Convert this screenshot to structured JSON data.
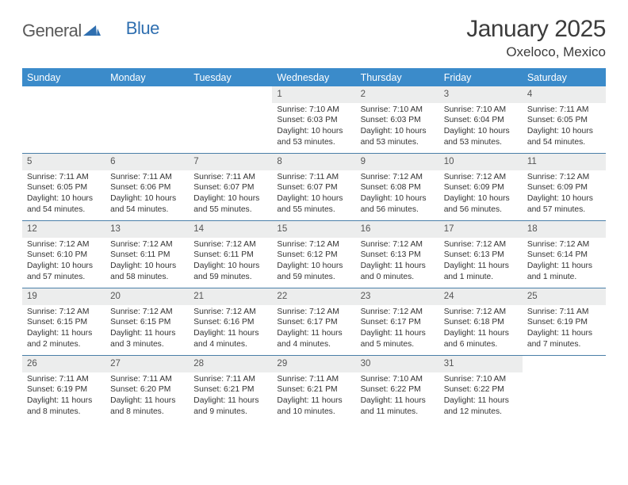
{
  "brand": {
    "part1": "General",
    "part2": "Blue",
    "color1": "#5a5a5a",
    "color2": "#2f6fb0"
  },
  "title": "January 2025",
  "location": "Oxeloco, Mexico",
  "colors": {
    "header_bg": "#3b8bca",
    "header_text": "#ffffff",
    "daynum_bg": "#eceded",
    "row_border": "#4a7fa8",
    "text": "#333333"
  },
  "day_headers": [
    "Sunday",
    "Monday",
    "Tuesday",
    "Wednesday",
    "Thursday",
    "Friday",
    "Saturday"
  ],
  "weeks": [
    {
      "nums": [
        "",
        "",
        "",
        "1",
        "2",
        "3",
        "4"
      ],
      "cells": [
        null,
        null,
        null,
        {
          "sunrise": "7:10 AM",
          "sunset": "6:03 PM",
          "daylight": "10 hours and 53 minutes."
        },
        {
          "sunrise": "7:10 AM",
          "sunset": "6:03 PM",
          "daylight": "10 hours and 53 minutes."
        },
        {
          "sunrise": "7:10 AM",
          "sunset": "6:04 PM",
          "daylight": "10 hours and 53 minutes."
        },
        {
          "sunrise": "7:11 AM",
          "sunset": "6:05 PM",
          "daylight": "10 hours and 54 minutes."
        }
      ]
    },
    {
      "nums": [
        "5",
        "6",
        "7",
        "8",
        "9",
        "10",
        "11"
      ],
      "cells": [
        {
          "sunrise": "7:11 AM",
          "sunset": "6:05 PM",
          "daylight": "10 hours and 54 minutes."
        },
        {
          "sunrise": "7:11 AM",
          "sunset": "6:06 PM",
          "daylight": "10 hours and 54 minutes."
        },
        {
          "sunrise": "7:11 AM",
          "sunset": "6:07 PM",
          "daylight": "10 hours and 55 minutes."
        },
        {
          "sunrise": "7:11 AM",
          "sunset": "6:07 PM",
          "daylight": "10 hours and 55 minutes."
        },
        {
          "sunrise": "7:12 AM",
          "sunset": "6:08 PM",
          "daylight": "10 hours and 56 minutes."
        },
        {
          "sunrise": "7:12 AM",
          "sunset": "6:09 PM",
          "daylight": "10 hours and 56 minutes."
        },
        {
          "sunrise": "7:12 AM",
          "sunset": "6:09 PM",
          "daylight": "10 hours and 57 minutes."
        }
      ]
    },
    {
      "nums": [
        "12",
        "13",
        "14",
        "15",
        "16",
        "17",
        "18"
      ],
      "cells": [
        {
          "sunrise": "7:12 AM",
          "sunset": "6:10 PM",
          "daylight": "10 hours and 57 minutes."
        },
        {
          "sunrise": "7:12 AM",
          "sunset": "6:11 PM",
          "daylight": "10 hours and 58 minutes."
        },
        {
          "sunrise": "7:12 AM",
          "sunset": "6:11 PM",
          "daylight": "10 hours and 59 minutes."
        },
        {
          "sunrise": "7:12 AM",
          "sunset": "6:12 PM",
          "daylight": "10 hours and 59 minutes."
        },
        {
          "sunrise": "7:12 AM",
          "sunset": "6:13 PM",
          "daylight": "11 hours and 0 minutes."
        },
        {
          "sunrise": "7:12 AM",
          "sunset": "6:13 PM",
          "daylight": "11 hours and 1 minute."
        },
        {
          "sunrise": "7:12 AM",
          "sunset": "6:14 PM",
          "daylight": "11 hours and 1 minute."
        }
      ]
    },
    {
      "nums": [
        "19",
        "20",
        "21",
        "22",
        "23",
        "24",
        "25"
      ],
      "cells": [
        {
          "sunrise": "7:12 AM",
          "sunset": "6:15 PM",
          "daylight": "11 hours and 2 minutes."
        },
        {
          "sunrise": "7:12 AM",
          "sunset": "6:15 PM",
          "daylight": "11 hours and 3 minutes."
        },
        {
          "sunrise": "7:12 AM",
          "sunset": "6:16 PM",
          "daylight": "11 hours and 4 minutes."
        },
        {
          "sunrise": "7:12 AM",
          "sunset": "6:17 PM",
          "daylight": "11 hours and 4 minutes."
        },
        {
          "sunrise": "7:12 AM",
          "sunset": "6:17 PM",
          "daylight": "11 hours and 5 minutes."
        },
        {
          "sunrise": "7:12 AM",
          "sunset": "6:18 PM",
          "daylight": "11 hours and 6 minutes."
        },
        {
          "sunrise": "7:11 AM",
          "sunset": "6:19 PM",
          "daylight": "11 hours and 7 minutes."
        }
      ]
    },
    {
      "nums": [
        "26",
        "27",
        "28",
        "29",
        "30",
        "31",
        ""
      ],
      "cells": [
        {
          "sunrise": "7:11 AM",
          "sunset": "6:19 PM",
          "daylight": "11 hours and 8 minutes."
        },
        {
          "sunrise": "7:11 AM",
          "sunset": "6:20 PM",
          "daylight": "11 hours and 8 minutes."
        },
        {
          "sunrise": "7:11 AM",
          "sunset": "6:21 PM",
          "daylight": "11 hours and 9 minutes."
        },
        {
          "sunrise": "7:11 AM",
          "sunset": "6:21 PM",
          "daylight": "11 hours and 10 minutes."
        },
        {
          "sunrise": "7:10 AM",
          "sunset": "6:22 PM",
          "daylight": "11 hours and 11 minutes."
        },
        {
          "sunrise": "7:10 AM",
          "sunset": "6:22 PM",
          "daylight": "11 hours and 12 minutes."
        },
        null
      ]
    }
  ],
  "labels": {
    "sunrise": "Sunrise: ",
    "sunset": "Sunset: ",
    "daylight": "Daylight: "
  }
}
